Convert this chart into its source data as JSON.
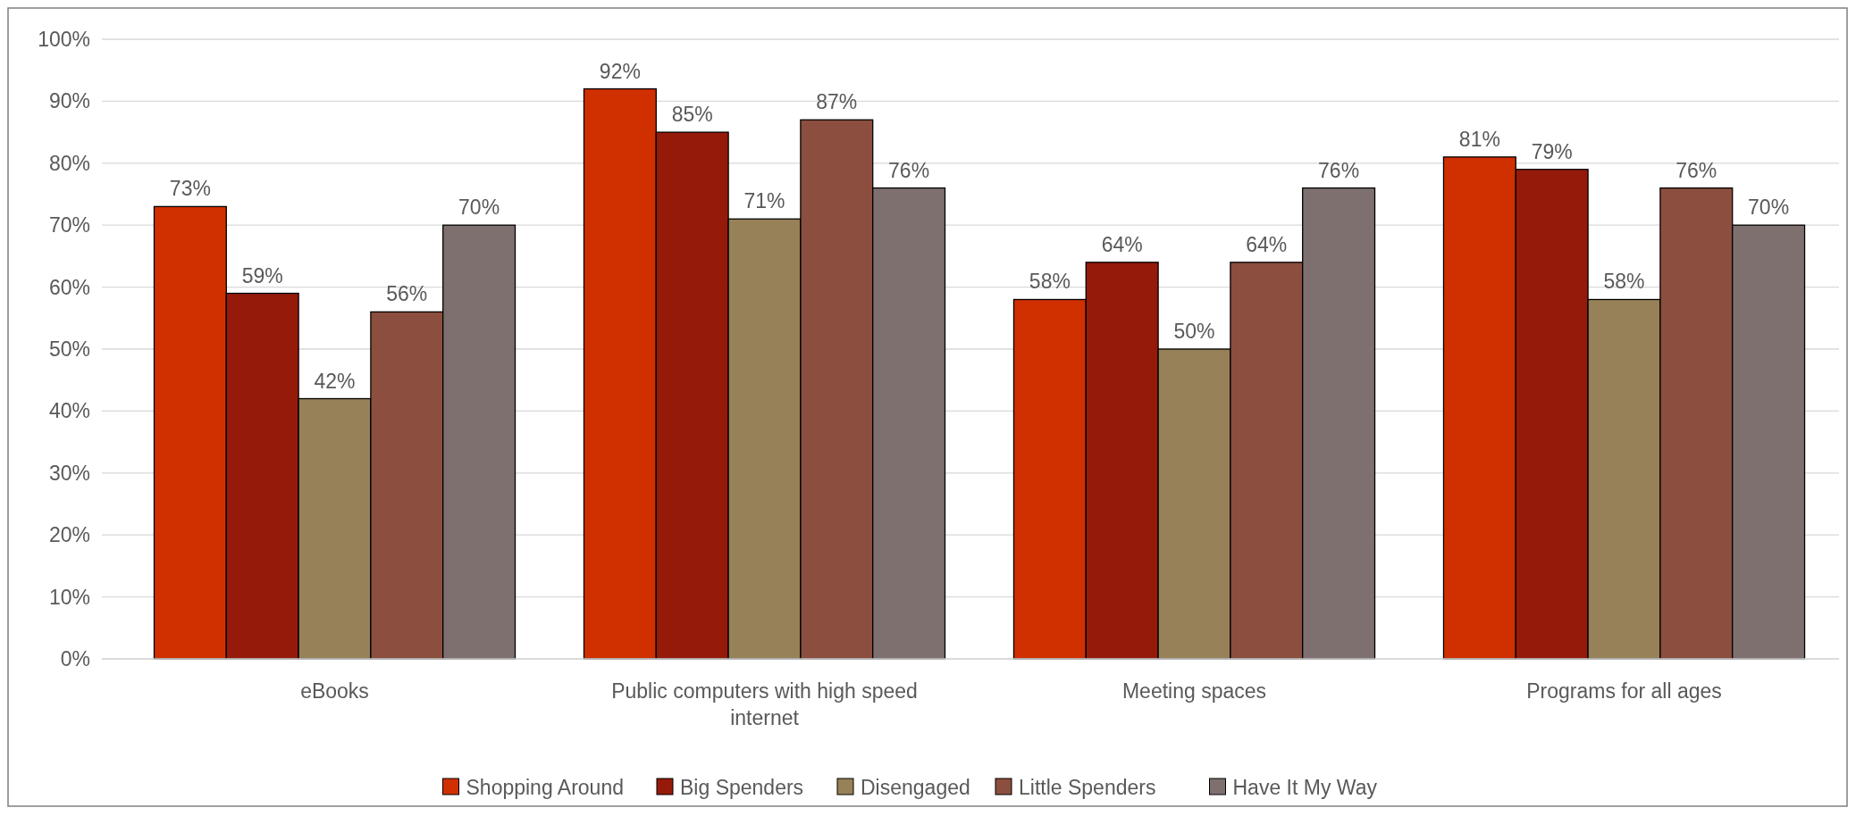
{
  "chart_data": {
    "type": "bar",
    "categories": [
      "eBooks",
      "Public computers with high speed internet",
      "Meeting spaces",
      "Programs for all ages"
    ],
    "series": [
      {
        "name": "Shopping Around",
        "color": "#d03000",
        "values": [
          73,
          92,
          58,
          81
        ],
        "value_labels": [
          "73%",
          "92%",
          "58%",
          "81%"
        ]
      },
      {
        "name": "Big Spenders",
        "color": "#961a0a",
        "values": [
          59,
          85,
          64,
          79
        ],
        "value_labels": [
          "59%",
          "85%",
          "64%",
          "79%"
        ]
      },
      {
        "name": "Disengaged",
        "color": "#978158",
        "values": [
          42,
          71,
          50,
          58
        ],
        "value_labels": [
          "42%",
          "71%",
          "50%",
          "58%"
        ]
      },
      {
        "name": "Little Spenders",
        "color": "#8c4e3e",
        "values": [
          56,
          87,
          64,
          76
        ],
        "value_labels": [
          "56%",
          "87%",
          "64%",
          "76%"
        ]
      },
      {
        "name": "Have It My Way",
        "color": "#7f7070",
        "values": [
          70,
          76,
          76,
          70
        ],
        "value_labels": [
          "70%",
          "76%",
          "76%",
          "70%"
        ]
      }
    ],
    "ylim": [
      0,
      100
    ],
    "yticks": [
      {
        "value": 0,
        "label": "0%"
      },
      {
        "value": 10,
        "label": "10%"
      },
      {
        "value": 20,
        "label": "20%"
      },
      {
        "value": 30,
        "label": "30%"
      },
      {
        "value": 40,
        "label": "40%"
      },
      {
        "value": 50,
        "label": "50%"
      },
      {
        "value": 60,
        "label": "60%"
      },
      {
        "value": 70,
        "label": "70%"
      },
      {
        "value": 80,
        "label": "80%"
      },
      {
        "value": 90,
        "label": "90%"
      },
      {
        "value": 100,
        "label": "100%"
      }
    ],
    "grid": "y",
    "legend": "bottom"
  }
}
